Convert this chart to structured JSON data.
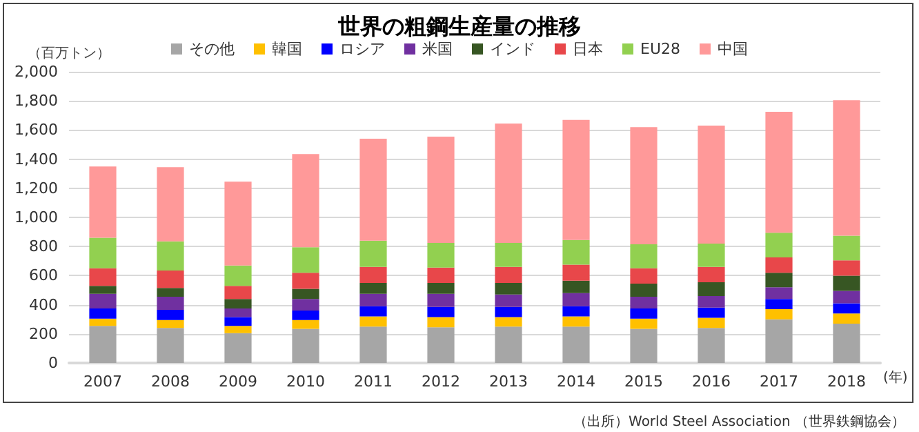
{
  "chart_data": {
    "type": "bar",
    "stacked": true,
    "title": "世界の粗鋼生産量の推移",
    "ylabel": "（百万トン）",
    "xlabel": "(年)",
    "annotations": [
      "（出所）World Steel Association （世界鉄鋼協会）"
    ],
    "categories": [
      "2007",
      "2008",
      "2009",
      "2010",
      "2011",
      "2012",
      "2013",
      "2014",
      "2015",
      "2016",
      "2017",
      "2018"
    ],
    "series": [
      {
        "name": "その他",
        "color": "#a6a6a6",
        "values": [
          255,
          240,
          205,
          235,
          250,
          245,
          250,
          250,
          235,
          240,
          300,
          270
        ]
      },
      {
        "name": "韓国",
        "color": "#ffc000",
        "values": [
          50,
          55,
          50,
          60,
          70,
          70,
          65,
          70,
          70,
          70,
          70,
          70
        ]
      },
      {
        "name": "ロシア",
        "color": "#0000ff",
        "values": [
          70,
          70,
          60,
          65,
          70,
          70,
          70,
          70,
          70,
          70,
          70,
          70
        ]
      },
      {
        "name": "米国",
        "color": "#7030a0",
        "values": [
          100,
          90,
          60,
          80,
          85,
          90,
          85,
          90,
          80,
          80,
          80,
          85
        ]
      },
      {
        "name": "インド",
        "color": "#375623",
        "values": [
          55,
          60,
          65,
          70,
          75,
          75,
          80,
          85,
          90,
          95,
          100,
          105
        ]
      },
      {
        "name": "日本",
        "color": "#e8474a",
        "values": [
          120,
          120,
          90,
          110,
          110,
          105,
          110,
          110,
          105,
          105,
          105,
          105
        ]
      },
      {
        "name": "EU28",
        "color": "#92d050",
        "values": [
          210,
          200,
          140,
          175,
          180,
          170,
          165,
          170,
          165,
          160,
          170,
          170
        ]
      },
      {
        "name": "中国",
        "color": "#ff9999",
        "values": [
          490,
          510,
          575,
          640,
          700,
          730,
          820,
          825,
          805,
          810,
          830,
          930
        ]
      }
    ],
    "ylim": [
      0,
      2000
    ],
    "yticks": [
      0,
      200,
      400,
      600,
      800,
      {
        "value": 1000,
        "label": "1,000"
      },
      {
        "value": 1200,
        "label": "1,200"
      },
      {
        "value": 1400,
        "label": "1,400"
      },
      {
        "value": 1600,
        "label": "1,600"
      },
      {
        "value": 1800,
        "label": "1,800"
      },
      {
        "value": 2000,
        "label": "2,000"
      }
    ],
    "grid": "y",
    "legend": "top"
  }
}
